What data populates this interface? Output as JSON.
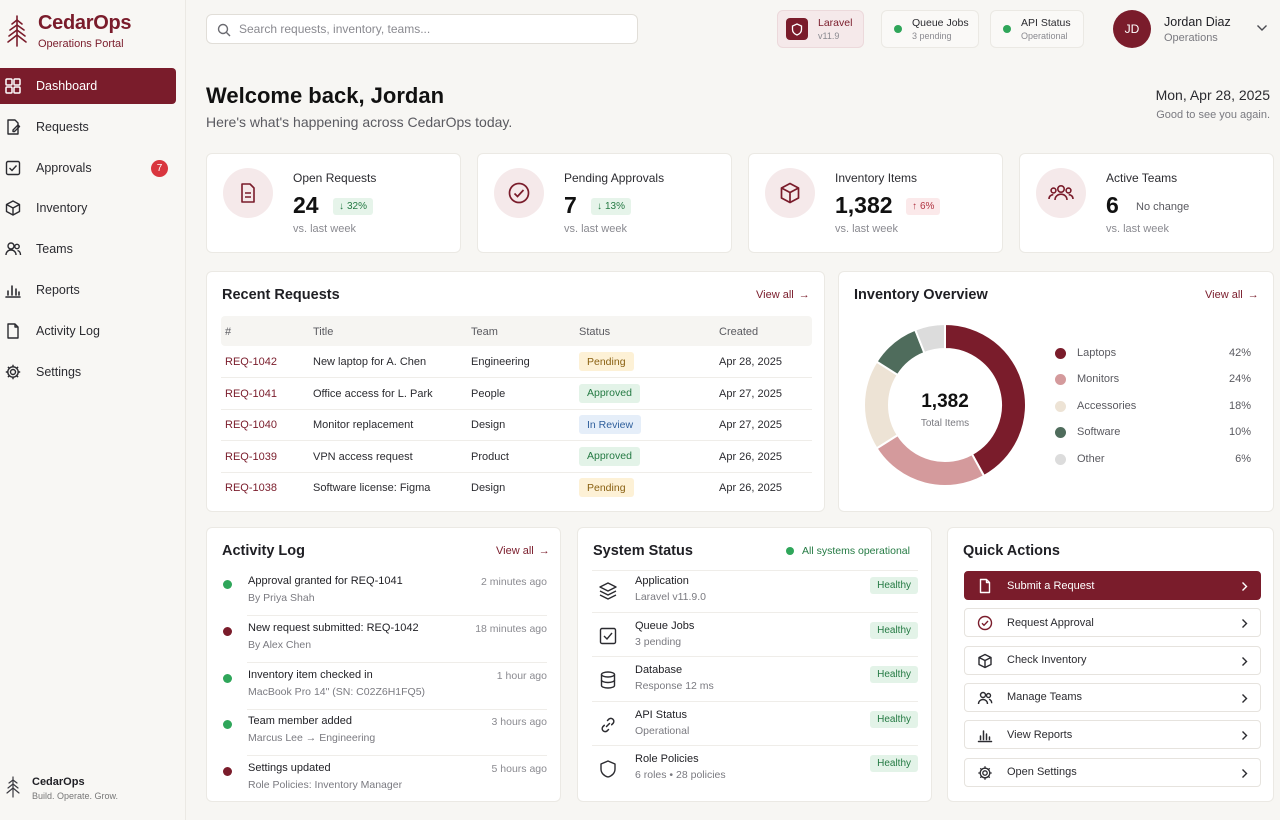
{
  "brand": {
    "name": "CedarOps",
    "subtitle": "Operations Portal"
  },
  "nav": [
    {
      "label": "Dashboard",
      "icon": "dashboard-icon",
      "active": true
    },
    {
      "label": "Requests",
      "icon": "requests-icon"
    },
    {
      "label": "Approvals",
      "icon": "approvals-icon",
      "badge": "7"
    },
    {
      "label": "Inventory",
      "icon": "inventory-icon"
    },
    {
      "label": "Teams",
      "icon": "teams-icon"
    },
    {
      "label": "Reports",
      "icon": "reports-icon"
    },
    {
      "label": "Activity Log",
      "icon": "activity-log-icon"
    },
    {
      "label": "Settings",
      "icon": "settings-icon"
    }
  ],
  "footer": {
    "name": "CedarOps",
    "tagline": "Build. Operate. Grow."
  },
  "search": {
    "placeholder": "Search requests, inventory, teams..."
  },
  "topbar": {
    "laravel": {
      "title": "Laravel",
      "version": "v11.9"
    },
    "queue": {
      "title": "Queue Jobs",
      "sub": "3 pending"
    },
    "api": {
      "title": "API Status",
      "sub": "Operational"
    }
  },
  "user": {
    "initials": "JD",
    "name": "Jordan Diaz",
    "role": "Operations"
  },
  "header": {
    "welcome": "Welcome back, Jordan",
    "subtitle": "Here's what's happening across CedarOps today.",
    "date": "Mon, Apr 28, 2025",
    "greeting": "Good to see you again."
  },
  "stats": [
    {
      "label": "Open Requests",
      "value": "24",
      "delta": "32%",
      "direction": "down",
      "note": "vs. last week"
    },
    {
      "label": "Pending Approvals",
      "value": "7",
      "delta": "13%",
      "direction": "down",
      "note": "vs. last week"
    },
    {
      "label": "Inventory Items",
      "value": "1,382",
      "delta": "6%",
      "direction": "up",
      "note": "vs. last week"
    },
    {
      "label": "Active Teams",
      "value": "6",
      "delta": "No change",
      "direction": "none",
      "note": "vs. last week"
    }
  ],
  "recent_requests": {
    "title": "Recent Requests",
    "view_all": "View all",
    "columns": [
      "#",
      "Title",
      "Team",
      "Status",
      "Created"
    ],
    "rows": [
      {
        "id": "REQ-1042",
        "title": "New laptop for A. Chen",
        "team": "Engineering",
        "status": "Pending",
        "created": "Apr 28, 2025"
      },
      {
        "id": "REQ-1041",
        "title": "Office access for L. Park",
        "team": "People",
        "status": "Approved",
        "created": "Apr 27, 2025"
      },
      {
        "id": "REQ-1040",
        "title": "Monitor replacement",
        "team": "Design",
        "status": "In Review",
        "created": "Apr 27, 2025"
      },
      {
        "id": "REQ-1039",
        "title": "VPN access request",
        "team": "Product",
        "status": "Approved",
        "created": "Apr 26, 2025"
      },
      {
        "id": "REQ-1038",
        "title": "Software license: Figma",
        "team": "Design",
        "status": "Pending",
        "created": "Apr 26, 2025"
      }
    ]
  },
  "inventory": {
    "title": "Inventory Overview",
    "view_all": "View all",
    "center_value": "1,382",
    "center_label": "Total Items"
  },
  "chart_data": {
    "type": "pie",
    "categories": [
      "Laptops",
      "Monitors",
      "Accessories",
      "Software",
      "Other"
    ],
    "values": [
      42,
      24,
      18,
      10,
      6
    ],
    "labels": [
      "42%",
      "24%",
      "18%",
      "10%",
      "6%"
    ],
    "colors": [
      "#7a1c2b",
      "#d49a9c",
      "#ede3d5",
      "#4f6c5c",
      "#dcdcdc"
    ]
  },
  "activity": {
    "title": "Activity Log",
    "view_all": "View all",
    "items": [
      {
        "title": "Approval granted for REQ-1041",
        "sub": "By Priya Shah",
        "time": "2 minutes ago",
        "color": "#2fa65a"
      },
      {
        "title": "New request submitted: REQ-1042",
        "sub": "By Alex Chen",
        "time": "18 minutes ago",
        "color": "#7a1c2b"
      },
      {
        "title": "Inventory item checked in",
        "sub": "MacBook Pro 14\" (SN: C02Z6H1FQ5)",
        "time": "1 hour ago",
        "color": "#2fa65a"
      },
      {
        "title": "Team member added",
        "sub": "Marcus Lee → Engineering",
        "time": "3 hours ago",
        "color": "#2fa65a"
      },
      {
        "title": "Settings updated",
        "sub": "Role Policies: Inventory Manager",
        "time": "5 hours ago",
        "color": "#7a1c2b"
      }
    ]
  },
  "system": {
    "title": "System Status",
    "overall": "All systems operational",
    "items": [
      {
        "title": "Application",
        "sub": "Laravel v11.9.0",
        "health": "Healthy",
        "icon": "layers-icon"
      },
      {
        "title": "Queue Jobs",
        "sub": "3 pending",
        "health": "Healthy",
        "icon": "queue-check-icon"
      },
      {
        "title": "Database",
        "sub": "Response 12 ms",
        "health": "Healthy",
        "icon": "database-icon"
      },
      {
        "title": "API Status",
        "sub": "Operational",
        "health": "Healthy",
        "icon": "link-icon"
      },
      {
        "title": "Role Policies",
        "sub": "6 roles • 28 policies",
        "health": "Healthy",
        "icon": "shield-icon"
      }
    ]
  },
  "quick_actions": {
    "title": "Quick Actions",
    "items": [
      {
        "label": "Submit a Request",
        "icon": "document-icon",
        "primary": true
      },
      {
        "label": "Request Approval",
        "icon": "check-circle-icon"
      },
      {
        "label": "Check Inventory",
        "icon": "box-icon"
      },
      {
        "label": "Manage Teams",
        "icon": "users-icon"
      },
      {
        "label": "View Reports",
        "icon": "bar-chart-icon"
      },
      {
        "label": "Open Settings",
        "icon": "gear-icon"
      }
    ]
  }
}
